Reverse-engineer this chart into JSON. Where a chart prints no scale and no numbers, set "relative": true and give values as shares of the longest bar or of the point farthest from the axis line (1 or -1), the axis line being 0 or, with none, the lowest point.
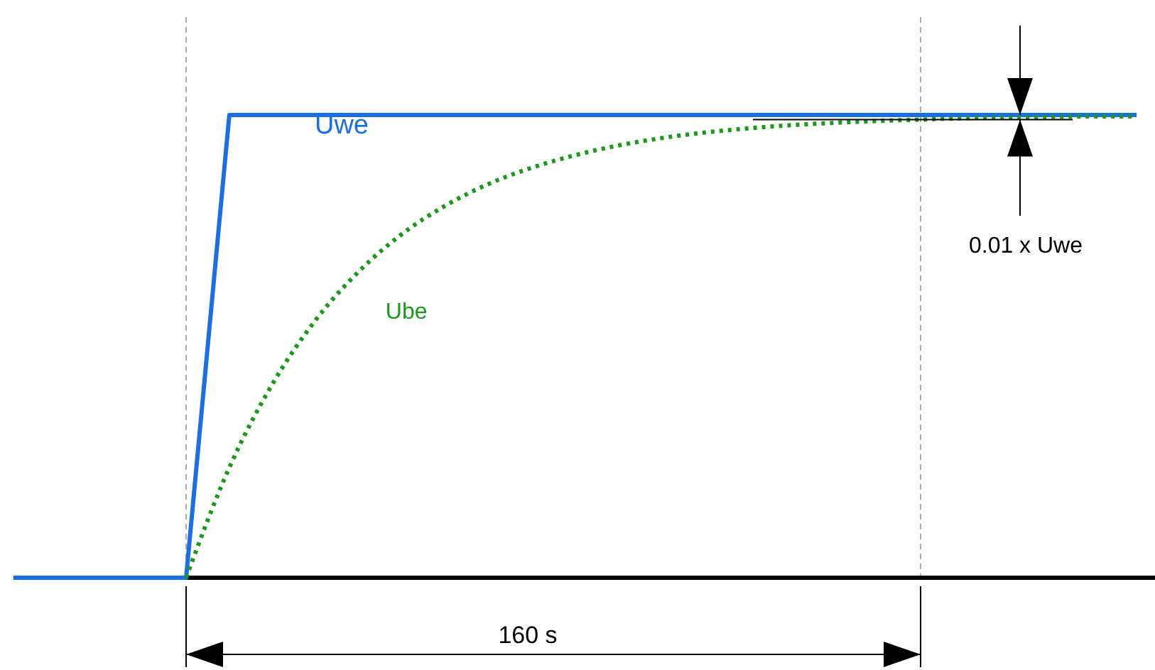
{
  "chart_data": {
    "type": "line",
    "relative": true,
    "categories": [
      null,
      null,
      null,
      null,
      null,
      null,
      null,
      null,
      null,
      null,
      null,
      null,
      null,
      null,
      null,
      null,
      null,
      null,
      null,
      null,
      null,
      null,
      null,
      null,
      null,
      null,
      null
    ],
    "series": [
      {
        "name": "Uwe",
        "color": "#1a6fe6",
        "line_style": "solid",
        "values": [
          0,
          0,
          0,
          0,
          0,
          1,
          1,
          1,
          1,
          1,
          1,
          1,
          1,
          1,
          1,
          1,
          1,
          1,
          1,
          1,
          1,
          1,
          1,
          1,
          1,
          1,
          1
        ]
      },
      {
        "name": "Ube",
        "color": "#1a9a1a",
        "line_style": "dotted",
        "values": [
          null,
          null,
          null,
          null,
          0,
          0.238,
          0.419,
          0.557,
          0.662,
          0.743,
          0.804,
          0.851,
          0.886,
          0.913,
          0.934,
          0.95,
          0.962,
          0.971,
          0.978,
          0.983,
          0.987,
          0.99,
          0.993,
          0.994,
          0.996,
          0.997,
          0.997
        ]
      }
    ],
    "annotations": [
      "160 s",
      "0.01 x Uwe"
    ]
  }
}
